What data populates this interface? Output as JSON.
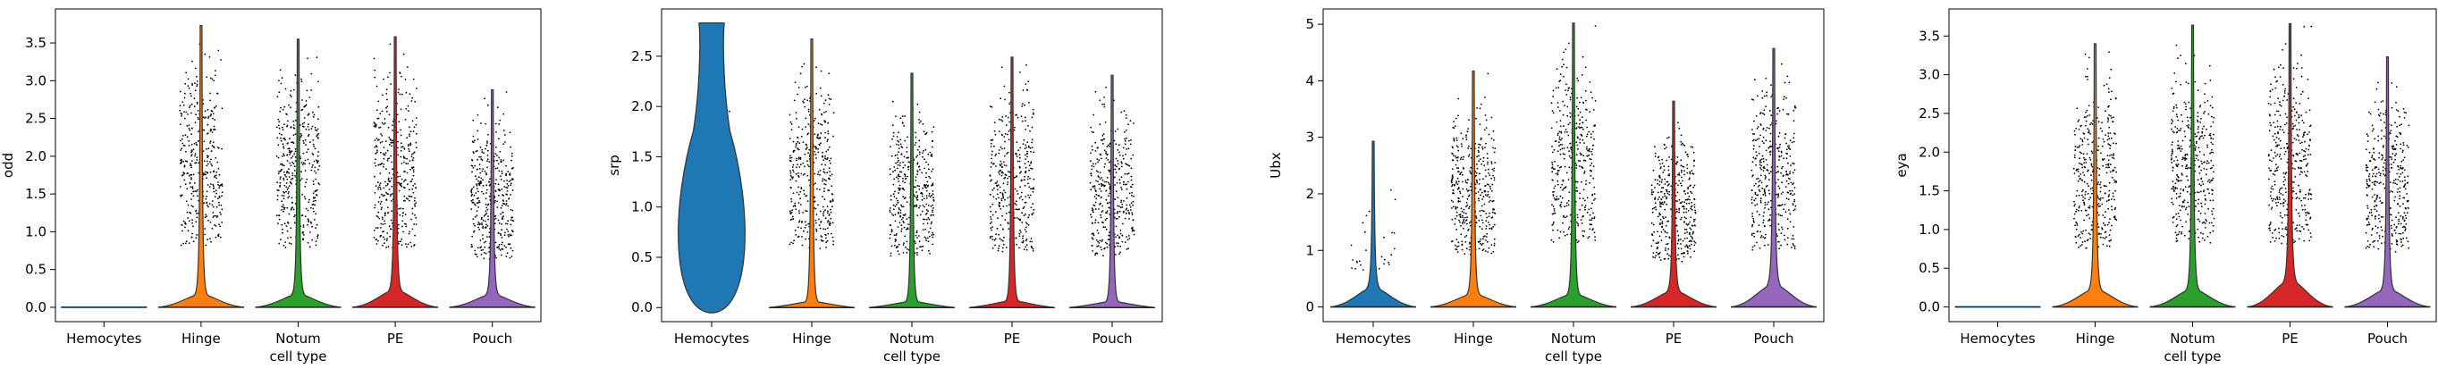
{
  "chart_data": [
    {
      "type": "violin",
      "ylabel": "odd",
      "xlabel": "cell type",
      "categories": [
        "Hemocytes",
        "Hinge",
        "Notum",
        "PE",
        "Pouch"
      ],
      "yticks": [
        "0.0",
        "0.5",
        "1.0",
        "1.5",
        "2.0",
        "2.5",
        "3.0",
        "3.5"
      ],
      "ylim": [
        -0.19,
        3.95
      ],
      "violin_max": [
        0.0,
        3.73,
        3.55,
        3.58,
        2.88
      ],
      "violin_bulge": [
        0.0,
        0.15,
        0.15,
        0.2,
        0.15
      ],
      "stripplot": true
    },
    {
      "type": "violin",
      "ylabel": "srp",
      "xlabel": "cell type",
      "categories": [
        "Hemocytes",
        "Hinge",
        "Notum",
        "PE",
        "Pouch"
      ],
      "yticks": [
        "0.0",
        "0.5",
        "1.0",
        "1.5",
        "2.0",
        "2.5"
      ],
      "ylim": [
        -0.14,
        2.97
      ],
      "violin_max": [
        2.83,
        2.67,
        2.33,
        2.49,
        2.31
      ],
      "violin_bulge": [
        2.83,
        0.03,
        0.04,
        0.06,
        0.05
      ],
      "stripplot": true
    },
    {
      "type": "violin",
      "ylabel": "Ubx",
      "xlabel": "cell type",
      "categories": [
        "Hemocytes",
        "Hinge",
        "Notum",
        "PE",
        "Pouch"
      ],
      "yticks": [
        "0",
        "1",
        "2",
        "3",
        "4",
        "5"
      ],
      "ylim": [
        -0.26,
        5.27
      ],
      "violin_max": [
        2.93,
        4.17,
        5.02,
        3.64,
        4.57
      ],
      "violin_bulge": [
        0.3,
        0.2,
        0.2,
        0.25,
        0.35
      ],
      "stripplot": true
    },
    {
      "type": "violin",
      "ylabel": "eya",
      "xlabel": "cell type",
      "categories": [
        "Hemocytes",
        "Hinge",
        "Notum",
        "PE",
        "Pouch"
      ],
      "yticks": [
        "0.0",
        "0.5",
        "1.0",
        "1.5",
        "2.0",
        "2.5",
        "3.0",
        "3.5"
      ],
      "ylim": [
        -0.19,
        3.85
      ],
      "violin_max": [
        0.0,
        3.4,
        3.64,
        3.66,
        3.23
      ],
      "violin_bulge": [
        0.0,
        0.2,
        0.2,
        0.3,
        0.2
      ],
      "stripplot": true
    }
  ],
  "colors": {
    "Hemocytes": "#1f77b4",
    "Hinge": "#ff7f0e",
    "Notum": "#2ca02c",
    "PE": "#d62728",
    "Pouch": "#9467bd"
  }
}
